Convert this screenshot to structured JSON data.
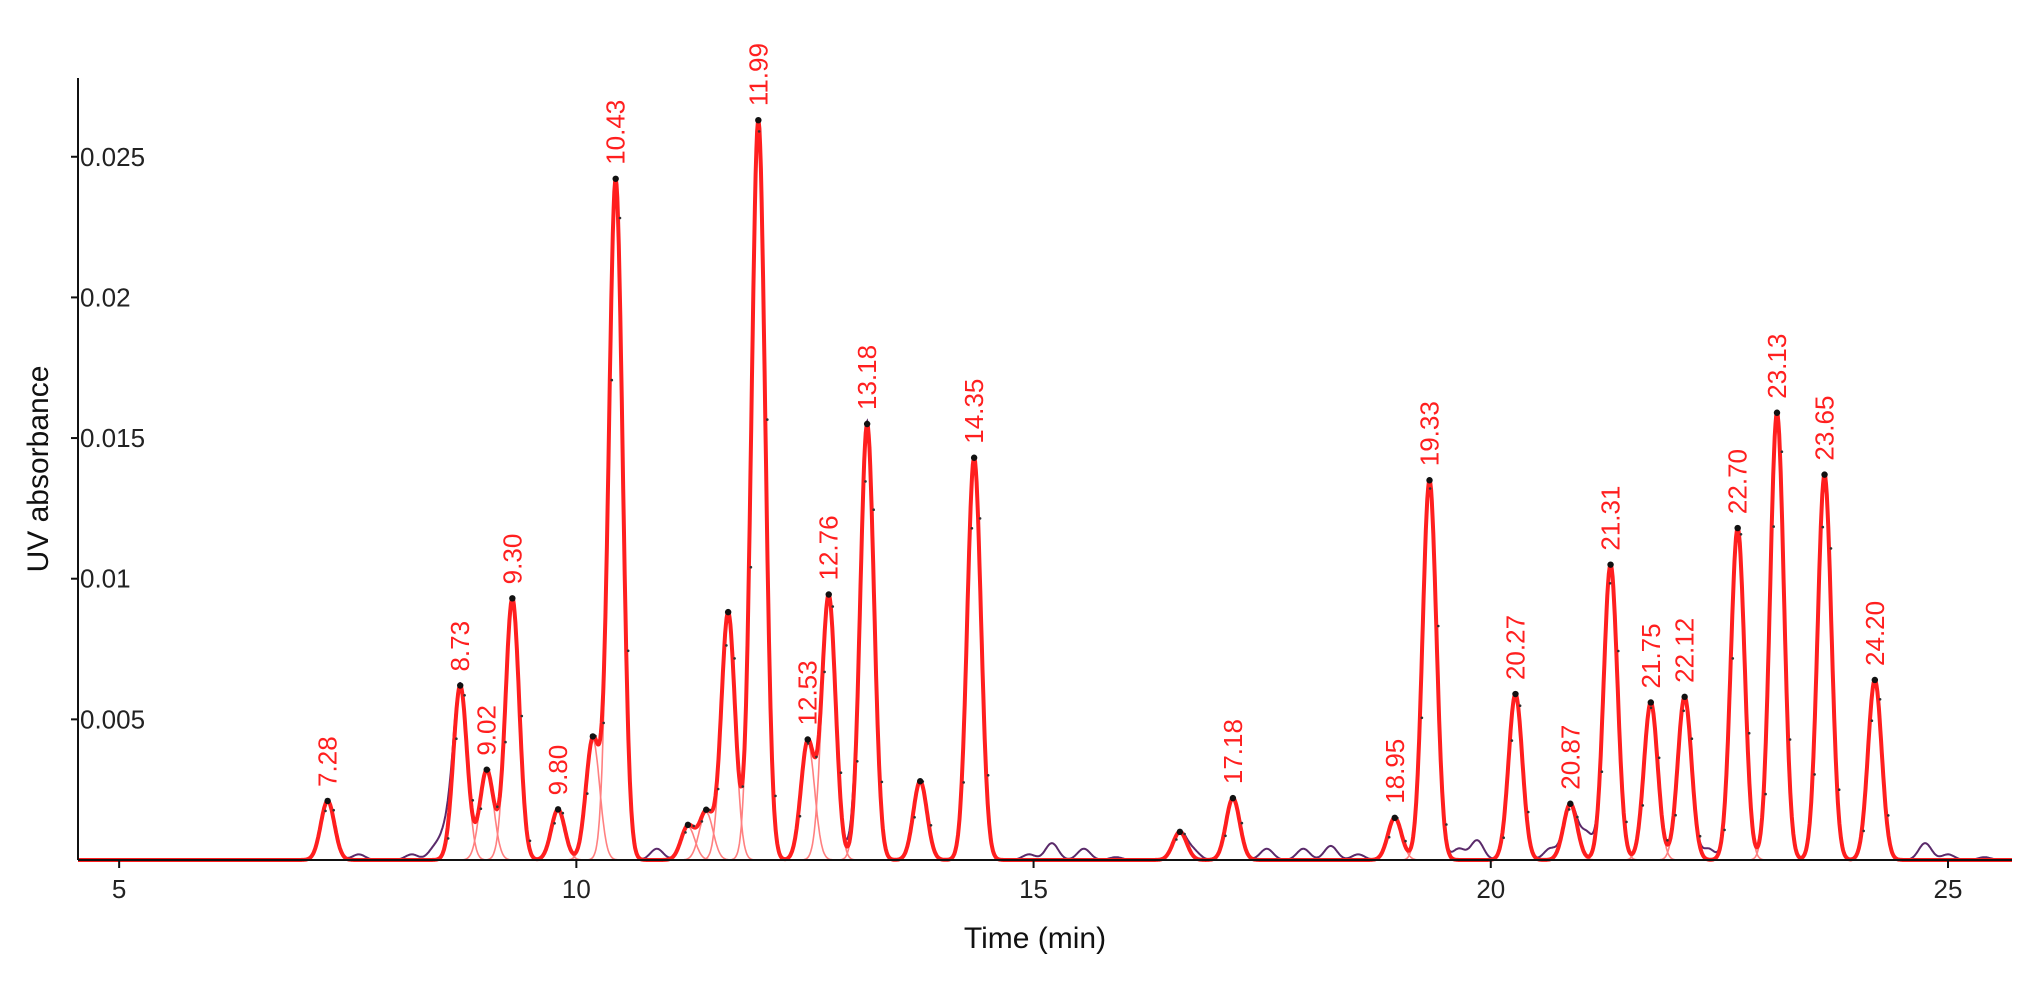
{
  "chart_data": {
    "type": "line",
    "title": "",
    "xlabel": "Time (min)",
    "ylabel": "UV absorbance",
    "xlim": [
      4.55,
      25.7
    ],
    "ylim": [
      0,
      0.0278
    ],
    "x_ticks": [
      5,
      10,
      15,
      20,
      25
    ],
    "x_tick_labels": [
      "5",
      "10",
      "15",
      "20",
      "25"
    ],
    "y_ticks": [
      0.005,
      0.01,
      0.015,
      0.02,
      0.025
    ],
    "y_tick_labels": [
      "0.005",
      "0.01",
      "0.015",
      "0.02",
      "0.025"
    ],
    "grid": false,
    "colors": {
      "fit": "#ff1f1f",
      "components": "#ff8080",
      "raw": "#5a2a6a",
      "marker": "#111111",
      "label": "#ff1f1f"
    },
    "series": [
      {
        "role": "fitted-peaks",
        "peaks": [
          {
            "time": 7.28,
            "height": 0.0021,
            "label": "7.28"
          },
          {
            "time": 8.73,
            "height": 0.0062,
            "label": "8.73"
          },
          {
            "time": 9.02,
            "height": 0.0032,
            "label": "9.02"
          },
          {
            "time": 9.3,
            "height": 0.0093,
            "label": "9.30"
          },
          {
            "time": 9.8,
            "height": 0.0018,
            "label": "9.80"
          },
          {
            "time": 10.18,
            "height": 0.0043,
            "label": ""
          },
          {
            "time": 10.43,
            "height": 0.0242,
            "label": "10.43"
          },
          {
            "time": 11.22,
            "height": 0.0012,
            "label": ""
          },
          {
            "time": 11.42,
            "height": 0.0017,
            "label": ""
          },
          {
            "time": 11.66,
            "height": 0.0088,
            "label": ""
          },
          {
            "time": 11.99,
            "height": 0.0263,
            "label": "11.99"
          },
          {
            "time": 12.53,
            "height": 0.0042,
            "label": "12.53"
          },
          {
            "time": 12.76,
            "height": 0.0094,
            "label": "12.76"
          },
          {
            "time": 13.18,
            "height": 0.0155,
            "label": "13.18"
          },
          {
            "time": 13.76,
            "height": 0.0028,
            "label": ""
          },
          {
            "time": 14.35,
            "height": 0.0143,
            "label": "14.35"
          },
          {
            "time": 16.6,
            "height": 0.001,
            "label": ""
          },
          {
            "time": 17.18,
            "height": 0.0022,
            "label": "17.18"
          },
          {
            "time": 18.95,
            "height": 0.0015,
            "label": "18.95"
          },
          {
            "time": 19.33,
            "height": 0.0135,
            "label": "19.33"
          },
          {
            "time": 20.27,
            "height": 0.0059,
            "label": "20.27"
          },
          {
            "time": 20.87,
            "height": 0.002,
            "label": "20.87"
          },
          {
            "time": 21.31,
            "height": 0.0105,
            "label": "21.31"
          },
          {
            "time": 21.75,
            "height": 0.0056,
            "label": "21.75"
          },
          {
            "time": 22.12,
            "height": 0.0058,
            "label": "22.12"
          },
          {
            "time": 22.7,
            "height": 0.0118,
            "label": "22.70"
          },
          {
            "time": 23.13,
            "height": 0.0159,
            "label": "23.13"
          },
          {
            "time": 23.65,
            "height": 0.0137,
            "label": "23.65"
          },
          {
            "time": 24.2,
            "height": 0.0064,
            "label": "24.20"
          }
        ],
        "peak_sigma_min": 0.075
      },
      {
        "role": "raw-minor-bumps",
        "bumps": [
          {
            "time": 7.62,
            "height": 0.0002
          },
          {
            "time": 8.2,
            "height": 0.0002
          },
          {
            "time": 8.45,
            "height": 0.0004
          },
          {
            "time": 8.58,
            "height": 0.0009
          },
          {
            "time": 10.88,
            "height": 0.0004
          },
          {
            "time": 13.05,
            "height": 0.0006
          },
          {
            "time": 14.95,
            "height": 0.0002
          },
          {
            "time": 15.2,
            "height": 0.0006
          },
          {
            "time": 15.55,
            "height": 0.0004
          },
          {
            "time": 15.9,
            "height": 0.0001
          },
          {
            "time": 16.75,
            "height": 0.0003
          },
          {
            "time": 17.55,
            "height": 0.0004
          },
          {
            "time": 17.95,
            "height": 0.0004
          },
          {
            "time": 18.25,
            "height": 0.0005
          },
          {
            "time": 18.55,
            "height": 0.0002
          },
          {
            "time": 19.65,
            "height": 0.0004
          },
          {
            "time": 19.85,
            "height": 0.0007
          },
          {
            "time": 20.65,
            "height": 0.0004
          },
          {
            "time": 21.05,
            "height": 0.0009
          },
          {
            "time": 22.38,
            "height": 0.0004
          },
          {
            "time": 24.75,
            "height": 0.0006
          },
          {
            "time": 25.0,
            "height": 0.0002
          },
          {
            "time": 25.4,
            "height": 0.0001
          }
        ]
      }
    ]
  }
}
